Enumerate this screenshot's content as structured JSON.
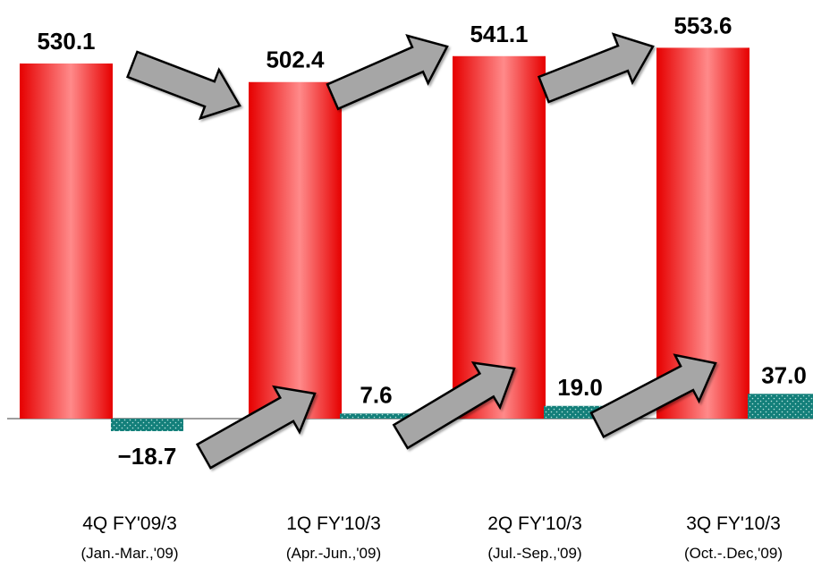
{
  "chart_data": {
    "type": "bar",
    "categories": [
      {
        "label": "4Q FY'09/3",
        "sublabel": "(Jan.-Mar.,'09)"
      },
      {
        "label": "1Q FY'10/3",
        "sublabel": "(Apr.-Jun.,'09)"
      },
      {
        "label": "2Q FY'10/3",
        "sublabel": "(Jul.-Sep.,'09)"
      },
      {
        "label": "3Q FY'10/3",
        "sublabel": "(Oct.-.Dec,'09)"
      }
    ],
    "series": [
      {
        "key": "revenue",
        "values": [
          530.1,
          502.4,
          541.1,
          553.6
        ],
        "labels": [
          "530.1",
          "502.4",
          "541.1",
          "553.6"
        ],
        "color": "#ff3b3b",
        "style": "gradient"
      },
      {
        "key": "income",
        "values": [
          -18.7,
          7.6,
          19.0,
          37.0
        ],
        "labels": [
          "−18.7",
          "7.6",
          "19.0",
          "37.0"
        ],
        "color": "#137f7a",
        "style": "dotted"
      }
    ],
    "arrows": "gray block arrows indicate quarter-over-quarter trend for both series",
    "grid": false,
    "legend": "none"
  }
}
